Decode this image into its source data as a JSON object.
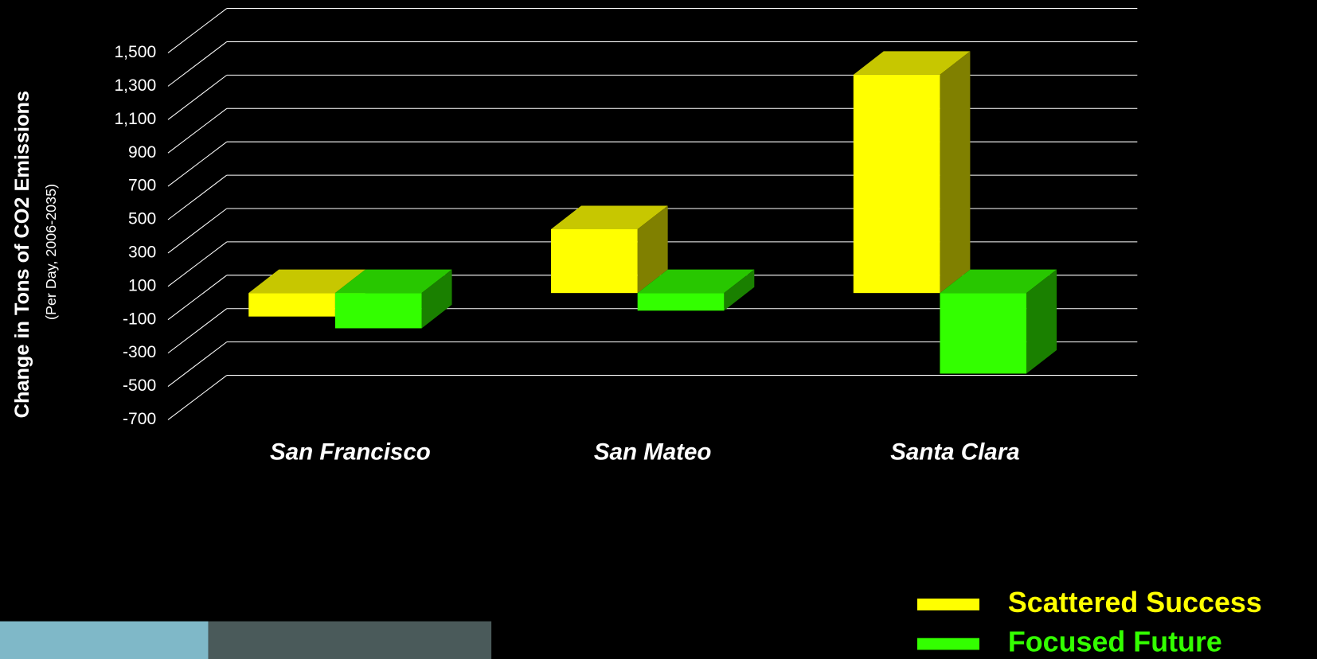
{
  "chart_data": {
    "type": "bar3d",
    "y_axis_label": "Change in Tons of CO2 Emissions",
    "y_axis_sublabel": "(Per Day, 2006-2035)",
    "categories": [
      "San Francisco",
      "San Mateo",
      "Santa Clara"
    ],
    "series": [
      {
        "name": "Scattered Success",
        "color": "#ffff00",
        "values": [
          -140,
          380,
          1300
        ]
      },
      {
        "name": "Focused Future",
        "color": "#33ff00",
        "values": [
          -210,
          -105,
          -480
        ]
      }
    ],
    "ylim": [
      -700,
      1500
    ],
    "yticks": [
      -700,
      -500,
      -300,
      -100,
      100,
      300,
      500,
      700,
      900,
      {
        "value": 1100,
        "label": "1,100"
      },
      {
        "value": 1300,
        "label": "1,300"
      },
      {
        "value": 1500,
        "label": "1,500"
      }
    ],
    "grid": true
  }
}
